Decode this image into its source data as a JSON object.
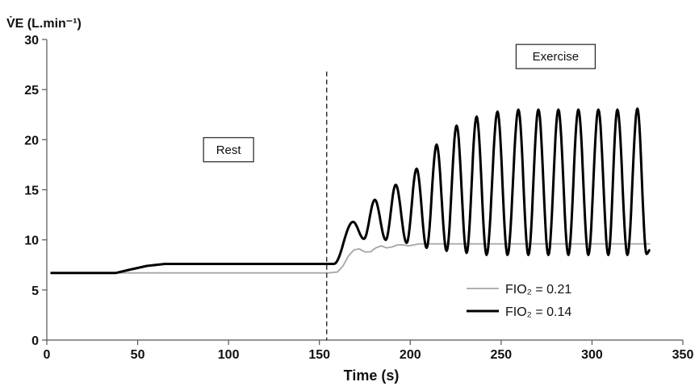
{
  "chart_data": {
    "type": "line",
    "title": "",
    "ylabel": "V̇E (L.min⁻¹)",
    "xlabel": "Time (s)",
    "xlim": [
      0,
      350
    ],
    "ylim": [
      0,
      30
    ],
    "x_ticks": [
      "0",
      "50",
      "100",
      "150",
      "200",
      "250",
      "300",
      "350"
    ],
    "y_ticks": [
      "0",
      "5",
      "10",
      "15",
      "20",
      "25",
      "30"
    ],
    "grid": false,
    "legend_position": "bottom-right",
    "vertical_marker_x": 154,
    "annotations": [
      {
        "text": "Rest",
        "x": 100,
        "y": 19
      },
      {
        "text": "Exercise",
        "x": 280,
        "y": 28.3
      }
    ],
    "series": [
      {
        "name": "FIO₂ = 0.21",
        "color": "#a6a6a6",
        "x": [
          2,
          20,
          40,
          60,
          80,
          100,
          120,
          140,
          155,
          160,
          163,
          166,
          169,
          172,
          175,
          178,
          181,
          184,
          187,
          190,
          193,
          196,
          199,
          202,
          205,
          210,
          220,
          240,
          260,
          280,
          300,
          320,
          332
        ],
        "y": [
          6.7,
          6.7,
          6.7,
          6.7,
          6.7,
          6.7,
          6.7,
          6.7,
          6.7,
          6.8,
          7.4,
          8.4,
          9.0,
          9.1,
          8.8,
          8.8,
          9.2,
          9.4,
          9.2,
          9.3,
          9.5,
          9.5,
          9.4,
          9.5,
          9.6,
          9.6,
          9.6,
          9.6,
          9.6,
          9.6,
          9.6,
          9.6,
          9.6
        ]
      },
      {
        "name": "FIO₂ = 0.14",
        "color": "#000000",
        "x": [
          2,
          20,
          38,
          45,
          55,
          65,
          80,
          100,
          120,
          140,
          155
        ],
        "y": [
          6.7,
          6.7,
          6.7,
          7.0,
          7.4,
          7.6,
          7.6,
          7.6,
          7.6,
          7.6,
          7.6
        ],
        "oscillation": {
          "note": "peaks and troughs of the exercise oscillation, FIO2 = 0.14",
          "peaks_x": [
            168.5,
            180.5,
            192,
            203.5,
            214.5,
            225.5,
            236.5,
            248,
            259.5,
            270.5,
            281.5,
            292.5,
            303.5,
            314,
            325
          ],
          "peaks_y": [
            11.8,
            14.0,
            15.5,
            17.1,
            19.5,
            21.4,
            22.3,
            22.8,
            23.0,
            23.0,
            23.0,
            23.0,
            23.0,
            23.0,
            23.1
          ],
          "troughs_x": [
            174.5,
            186.5,
            198,
            209,
            220,
            231,
            242,
            253.5,
            265,
            276,
            287,
            298,
            309,
            319.5,
            330
          ],
          "troughs_y": [
            10.1,
            10.0,
            9.7,
            9.2,
            8.9,
            8.7,
            8.5,
            8.5,
            8.5,
            8.5,
            8.5,
            8.5,
            8.5,
            8.5,
            8.6
          ],
          "end": [
            332,
            9.0
          ]
        }
      }
    ]
  }
}
